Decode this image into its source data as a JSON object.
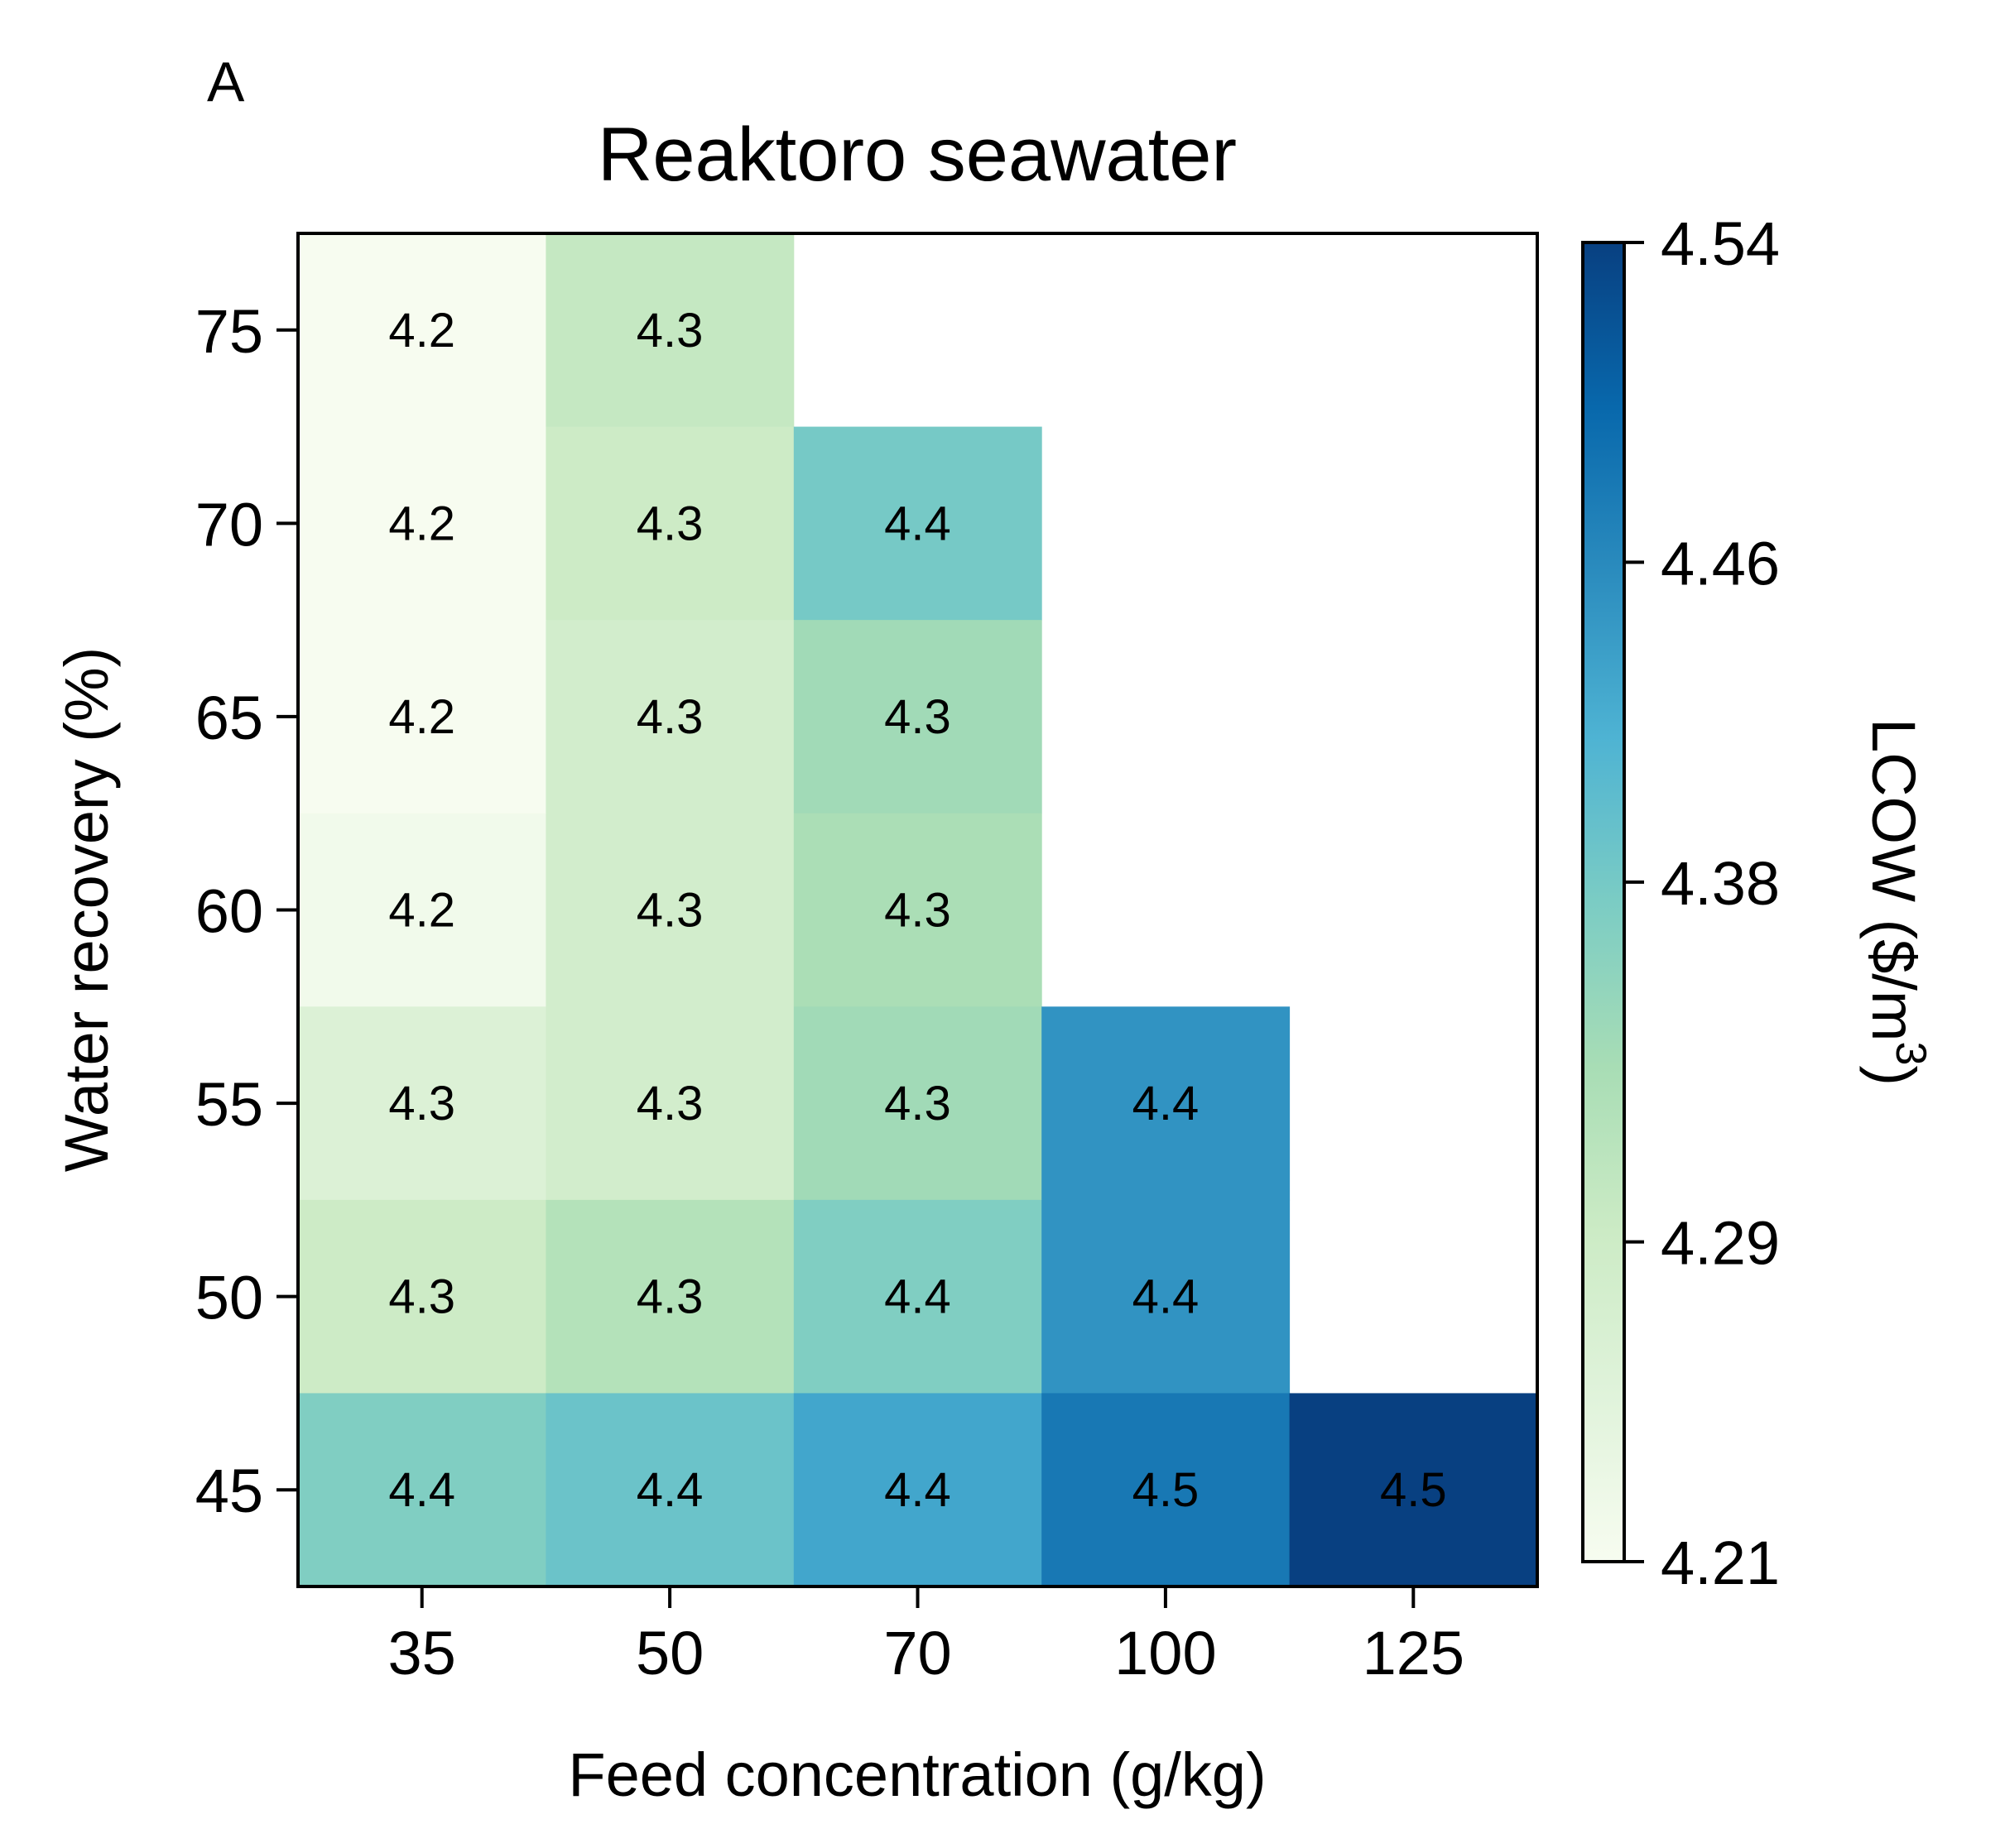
{
  "panel_label": "A",
  "chart_data": {
    "type": "heatmap",
    "title": "Reaktoro seawater",
    "xlabel": "Feed concentration (g/kg)",
    "ylabel": "Water recovery (%)",
    "x_categories": [
      "35",
      "50",
      "70",
      "100",
      "125"
    ],
    "y_categories": [
      "75",
      "70",
      "65",
      "60",
      "55",
      "50",
      "45"
    ],
    "values": [
      [
        4.21,
        4.3,
        null,
        null,
        null
      ],
      [
        4.21,
        4.29,
        4.38,
        null,
        null
      ],
      [
        4.21,
        4.28,
        4.34,
        null,
        null
      ],
      [
        4.22,
        4.28,
        4.33,
        null,
        null
      ],
      [
        4.26,
        4.28,
        4.34,
        4.45,
        null
      ],
      [
        4.29,
        4.32,
        4.37,
        4.45,
        null
      ],
      [
        4.37,
        4.39,
        4.43,
        4.48,
        4.54
      ]
    ],
    "cell_labels": [
      [
        "4.2",
        "4.3",
        null,
        null,
        null
      ],
      [
        "4.2",
        "4.3",
        "4.4",
        null,
        null
      ],
      [
        "4.2",
        "4.3",
        "4.3",
        null,
        null
      ],
      [
        "4.2",
        "4.3",
        "4.3",
        null,
        null
      ],
      [
        "4.3",
        "4.3",
        "4.3",
        "4.4",
        null
      ],
      [
        "4.3",
        "4.3",
        "4.4",
        "4.4",
        null
      ],
      [
        "4.4",
        "4.4",
        "4.4",
        "4.5",
        "4.5"
      ]
    ],
    "colorbar": {
      "label": "LCOW ($/m",
      "label_superscript": "3",
      "label_suffix": ")",
      "min": 4.21,
      "max": 4.54,
      "ticks": [
        "4.21",
        "4.29",
        "4.38",
        "4.46",
        "4.54"
      ],
      "colormap": "GnBu",
      "stops": [
        "#f7fcf0",
        "#e0f3db",
        "#ccebc5",
        "#a8ddb5",
        "#7bccc4",
        "#4eb3d3",
        "#2b8cbe",
        "#0868ac",
        "#084081"
      ]
    },
    "grid": false
  }
}
